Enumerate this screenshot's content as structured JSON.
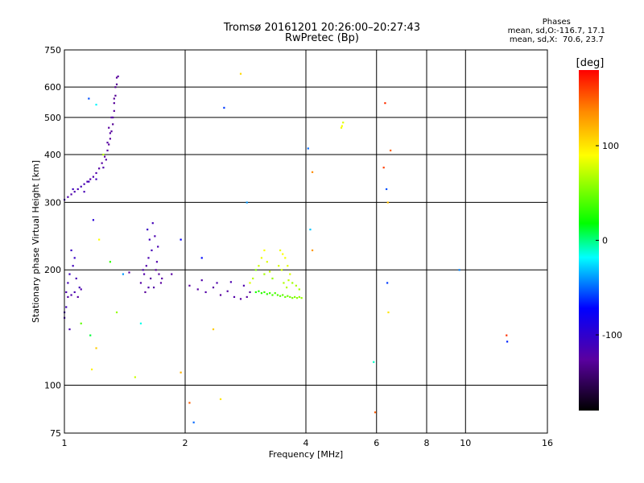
{
  "chart_data": {
    "type": "scatter",
    "title": "Tromsø 20161201 20:26:00–20:27:43",
    "subtitle": "RwPretec (Bp)",
    "xlabel": "Frequency [MHz]",
    "ylabel": "Stationary phase Virtual Height [km]",
    "x_scale": "log",
    "y_scale": "log",
    "xlim": [
      1,
      16
    ],
    "ylim": [
      75,
      750
    ],
    "x_ticks": [
      "1",
      "2",
      "4",
      "6",
      "8",
      "10",
      "16"
    ],
    "y_ticks": [
      "75",
      "100",
      "200",
      "300",
      "400",
      "500",
      "600",
      "750"
    ],
    "grid": true,
    "colorbar": {
      "label": "[deg]",
      "min": -180,
      "max": 180,
      "ticks": [
        "100",
        "0",
        "-100"
      ]
    },
    "stats": {
      "heading": "Phases",
      "line_o": "mean, sd,O:-116.7, 17.1",
      "line_x": "mean, sd,X:  70.6, 23.7"
    },
    "series": [
      {
        "points": [
          [
            1.0,
            305,
            -115
          ],
          [
            1.02,
            310,
            -118
          ],
          [
            1.04,
            315,
            -120
          ],
          [
            1.06,
            320,
            -117
          ],
          [
            1.08,
            325,
            -115
          ],
          [
            1.1,
            330,
            -113
          ],
          [
            1.12,
            335,
            -116
          ],
          [
            1.14,
            340,
            -118
          ],
          [
            1.16,
            345,
            -121
          ],
          [
            1.18,
            350,
            -118
          ],
          [
            1.2,
            358,
            -120
          ],
          [
            1.22,
            368,
            -123
          ],
          [
            1.24,
            380,
            -125
          ],
          [
            1.26,
            395,
            -126
          ],
          [
            1.28,
            410,
            -128
          ],
          [
            1.29,
            425,
            -127
          ],
          [
            1.3,
            440,
            -125
          ],
          [
            1.31,
            460,
            -128
          ],
          [
            1.32,
            480,
            -130
          ],
          [
            1.32,
            500,
            -129
          ],
          [
            1.33,
            520,
            -127
          ],
          [
            1.33,
            545,
            -128
          ],
          [
            1.34,
            570,
            -130
          ],
          [
            1.34,
            600,
            -131
          ],
          [
            1.35,
            635,
            -128
          ],
          [
            1.36,
            640,
            -126
          ],
          [
            1.15,
            340,
            -112
          ],
          [
            1.2,
            345,
            -110
          ],
          [
            1.12,
            320,
            -114
          ],
          [
            1.05,
            325,
            -110
          ],
          [
            1.25,
            370,
            -119
          ],
          [
            1.27,
            388,
            -121
          ],
          [
            1.3,
            455,
            -123
          ],
          [
            1.31,
            500,
            -124
          ],
          [
            1.29,
            470,
            -126
          ],
          [
            1.28,
            430,
            -124
          ],
          [
            1.33,
            560,
            -128
          ],
          [
            1.35,
            610,
            -130
          ],
          [
            1.01,
            175,
            -118
          ],
          [
            1.02,
            170,
            -122
          ],
          [
            1.04,
            172,
            -120
          ],
          [
            1.06,
            175,
            -117
          ],
          [
            1.08,
            170,
            -125
          ],
          [
            1.1,
            178,
            -119
          ],
          [
            1.02,
            185,
            -112
          ],
          [
            1.03,
            195,
            -108
          ],
          [
            1.05,
            205,
            -110
          ],
          [
            1.06,
            215,
            -104
          ],
          [
            1.04,
            225,
            -106
          ],
          [
            1.07,
            190,
            -114
          ],
          [
            1.0,
            150,
            -112
          ],
          [
            1.01,
            160,
            -110
          ],
          [
            1.0,
            155,
            -115
          ],
          [
            1.03,
            140,
            -116
          ],
          [
            1.09,
            180,
            -113
          ],
          [
            1.55,
            185,
            -123
          ],
          [
            1.58,
            195,
            -121
          ],
          [
            1.6,
            205,
            -119
          ],
          [
            1.62,
            215,
            -116
          ],
          [
            1.65,
            225,
            -113
          ],
          [
            1.63,
            240,
            -110
          ],
          [
            1.61,
            255,
            -106
          ],
          [
            1.66,
            265,
            -112
          ],
          [
            1.68,
            245,
            -117
          ],
          [
            1.7,
            210,
            -120
          ],
          [
            1.72,
            195,
            -124
          ],
          [
            1.74,
            185,
            -126
          ],
          [
            1.67,
            180,
            -122
          ],
          [
            1.64,
            190,
            -125
          ],
          [
            1.59,
            175,
            -128
          ],
          [
            1.57,
            200,
            -120
          ],
          [
            1.71,
            230,
            -115
          ],
          [
            1.69,
            200,
            -127
          ],
          [
            1.75,
            190,
            -124
          ],
          [
            1.62,
            180,
            -119
          ],
          [
            2.05,
            182,
            -126
          ],
          [
            2.15,
            178,
            -124
          ],
          [
            2.25,
            175,
            -122
          ],
          [
            2.35,
            180,
            -125
          ],
          [
            2.45,
            172,
            -127
          ],
          [
            2.55,
            176,
            -123
          ],
          [
            2.65,
            170,
            -121
          ],
          [
            2.75,
            168,
            -124
          ],
          [
            2.85,
            170,
            -126
          ],
          [
            2.2,
            188,
            -120
          ],
          [
            2.4,
            185,
            -118
          ],
          [
            2.6,
            186,
            -117
          ],
          [
            2.8,
            182,
            -119
          ],
          [
            2.9,
            175,
            -128
          ],
          [
            1.15,
            560,
            -55
          ],
          [
            1.2,
            540,
            -20
          ],
          [
            1.25,
            400,
            70
          ],
          [
            1.18,
            270,
            -95
          ],
          [
            1.22,
            240,
            90
          ],
          [
            1.4,
            195,
            -40
          ],
          [
            1.55,
            145,
            -15
          ],
          [
            1.2,
            125,
            110
          ],
          [
            1.17,
            110,
            95
          ],
          [
            1.5,
            105,
            75
          ],
          [
            1.95,
            108,
            120
          ],
          [
            2.05,
            90,
            150
          ],
          [
            2.1,
            80,
            -50
          ],
          [
            2.2,
            215,
            -70
          ],
          [
            2.35,
            140,
            110
          ],
          [
            2.45,
            92,
            100
          ],
          [
            2.5,
            530,
            -60
          ],
          [
            2.75,
            650,
            105
          ],
          [
            2.85,
            300,
            -40
          ],
          [
            1.95,
            240,
            -75
          ],
          [
            1.3,
            210,
            30
          ],
          [
            1.1,
            145,
            45
          ],
          [
            1.35,
            155,
            60
          ],
          [
            1.16,
            135,
            10
          ],
          [
            4.05,
            415,
            -50
          ],
          [
            4.15,
            360,
            135
          ],
          [
            4.1,
            255,
            -30
          ],
          [
            4.15,
            225,
            130
          ],
          [
            5.9,
            115,
            -10
          ],
          [
            5.95,
            85,
            150
          ],
          [
            6.3,
            545,
            165
          ],
          [
            6.35,
            325,
            -55
          ],
          [
            6.4,
            300,
            115
          ],
          [
            6.38,
            185,
            -60
          ],
          [
            6.42,
            155,
            100
          ],
          [
            6.5,
            410,
            150
          ],
          [
            6.25,
            370,
            160
          ],
          [
            9.65,
            200,
            -45
          ],
          [
            12.65,
            135,
            165
          ],
          [
            12.7,
            130,
            -65
          ],
          [
            1.45,
            197,
            -125
          ],
          [
            1.85,
            195,
            -124
          ]
        ]
      },
      {
        "points": [
          [
            3.0,
            175,
            25
          ],
          [
            3.05,
            176,
            28
          ],
          [
            3.1,
            174,
            30
          ],
          [
            3.15,
            175,
            32
          ],
          [
            3.2,
            173,
            30
          ],
          [
            3.25,
            174,
            34
          ],
          [
            3.3,
            172,
            36
          ],
          [
            3.35,
            174,
            38
          ],
          [
            3.4,
            172,
            40
          ],
          [
            3.45,
            171,
            42
          ],
          [
            3.5,
            172,
            44
          ],
          [
            3.55,
            170,
            46
          ],
          [
            3.6,
            171,
            48
          ],
          [
            3.65,
            170,
            50
          ],
          [
            3.7,
            169,
            52
          ],
          [
            3.75,
            170,
            54
          ],
          [
            3.8,
            169,
            56
          ],
          [
            3.85,
            170,
            58
          ],
          [
            3.9,
            169,
            60
          ],
          [
            2.9,
            185,
            80
          ],
          [
            2.95,
            190,
            70
          ],
          [
            3.05,
            205,
            75
          ],
          [
            3.1,
            215,
            85
          ],
          [
            3.15,
            225,
            90
          ],
          [
            3.2,
            210,
            80
          ],
          [
            3.25,
            198,
            72
          ],
          [
            3.3,
            190,
            60
          ],
          [
            3.45,
            225,
            85
          ],
          [
            3.5,
            220,
            90
          ],
          [
            3.55,
            215,
            88
          ],
          [
            3.6,
            205,
            82
          ],
          [
            3.65,
            195,
            80
          ],
          [
            3.48,
            200,
            75
          ],
          [
            3.52,
            185,
            68
          ],
          [
            3.58,
            180,
            70
          ],
          [
            3.62,
            188,
            72
          ],
          [
            3.42,
            205,
            78
          ],
          [
            3.15,
            195,
            65
          ],
          [
            3.0,
            200,
            55
          ],
          [
            3.7,
            185,
            62
          ],
          [
            3.78,
            182,
            66
          ],
          [
            3.85,
            178,
            64
          ],
          [
            4.9,
            470,
            85
          ],
          [
            4.95,
            485,
            80
          ],
          [
            4.92,
            475,
            90
          ]
        ]
      }
    ]
  }
}
